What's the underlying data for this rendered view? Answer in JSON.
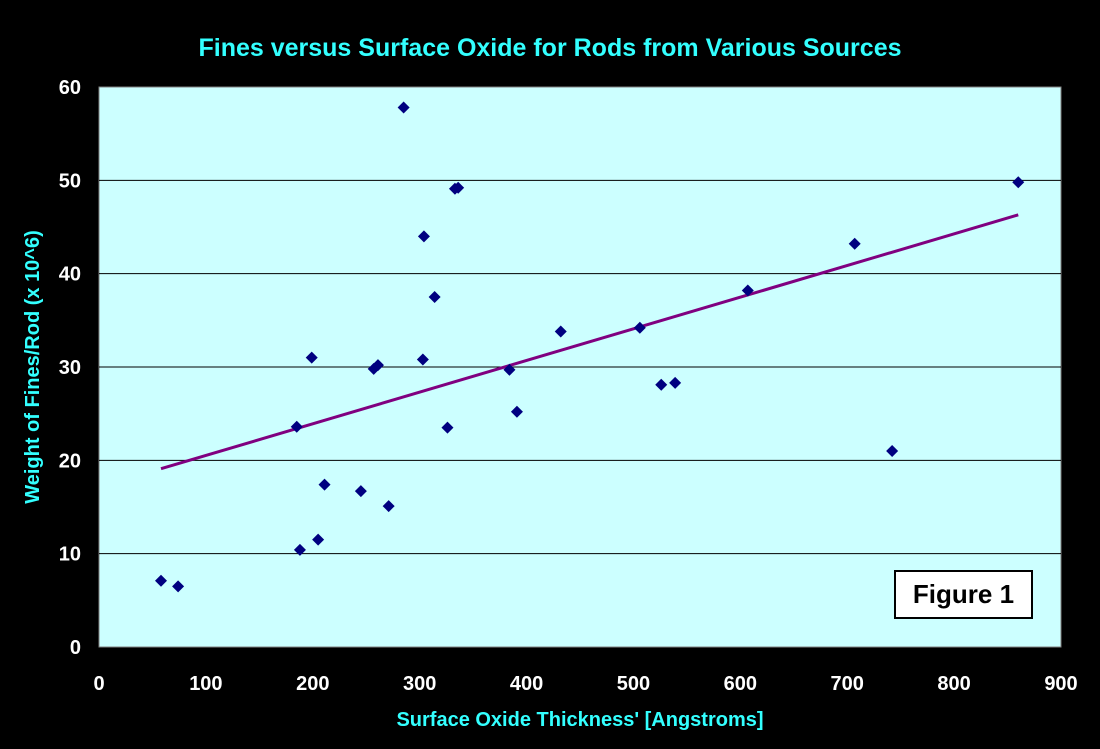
{
  "colors": {
    "background": "#000000",
    "plot_area": "#ccffff",
    "title": "#33ffff",
    "axis_text": "#ffffff",
    "gridline": "#000000",
    "marker": "#000080",
    "trendline": "#800080",
    "figure_box_bg": "#ffffff",
    "figure_box_text": "#000000"
  },
  "figure_label": "Figure 1",
  "chart_data": {
    "type": "scatter",
    "title": "Fines versus Surface Oxide for Rods from Various Sources",
    "xlabel": "Surface Oxide Thickness' [Angstroms]",
    "ylabel": "Weight of Fines/Rod (x 10^6)",
    "xlim": [
      0,
      900
    ],
    "ylim": [
      0,
      60
    ],
    "x_ticks": [
      0,
      100,
      200,
      300,
      400,
      500,
      600,
      700,
      800,
      900
    ],
    "y_ticks": [
      0,
      10,
      20,
      30,
      40,
      50,
      60
    ],
    "grid": {
      "horizontal": true,
      "vertical": false
    },
    "marker": "diamond",
    "points": [
      {
        "x": 58,
        "y": 7.1
      },
      {
        "x": 74,
        "y": 6.5
      },
      {
        "x": 185,
        "y": 23.6
      },
      {
        "x": 188,
        "y": 10.4
      },
      {
        "x": 199,
        "y": 31.0
      },
      {
        "x": 205,
        "y": 11.5
      },
      {
        "x": 211,
        "y": 17.4
      },
      {
        "x": 245,
        "y": 16.7
      },
      {
        "x": 257,
        "y": 29.8
      },
      {
        "x": 261,
        "y": 30.2
      },
      {
        "x": 271,
        "y": 15.1
      },
      {
        "x": 285,
        "y": 57.8
      },
      {
        "x": 303,
        "y": 30.8
      },
      {
        "x": 304,
        "y": 44.0
      },
      {
        "x": 314,
        "y": 37.5
      },
      {
        "x": 326,
        "y": 23.5
      },
      {
        "x": 333,
        "y": 49.1
      },
      {
        "x": 336,
        "y": 49.2
      },
      {
        "x": 384,
        "y": 29.7
      },
      {
        "x": 391,
        "y": 25.2
      },
      {
        "x": 432,
        "y": 33.8
      },
      {
        "x": 506,
        "y": 34.2
      },
      {
        "x": 526,
        "y": 28.1
      },
      {
        "x": 539,
        "y": 28.3
      },
      {
        "x": 607,
        "y": 38.2
      },
      {
        "x": 707,
        "y": 43.2
      },
      {
        "x": 742,
        "y": 21.0
      },
      {
        "x": 860,
        "y": 49.8
      }
    ],
    "trendline": {
      "type": "linear",
      "x": [
        58,
        860
      ],
      "y": [
        19.1,
        46.3
      ]
    }
  }
}
